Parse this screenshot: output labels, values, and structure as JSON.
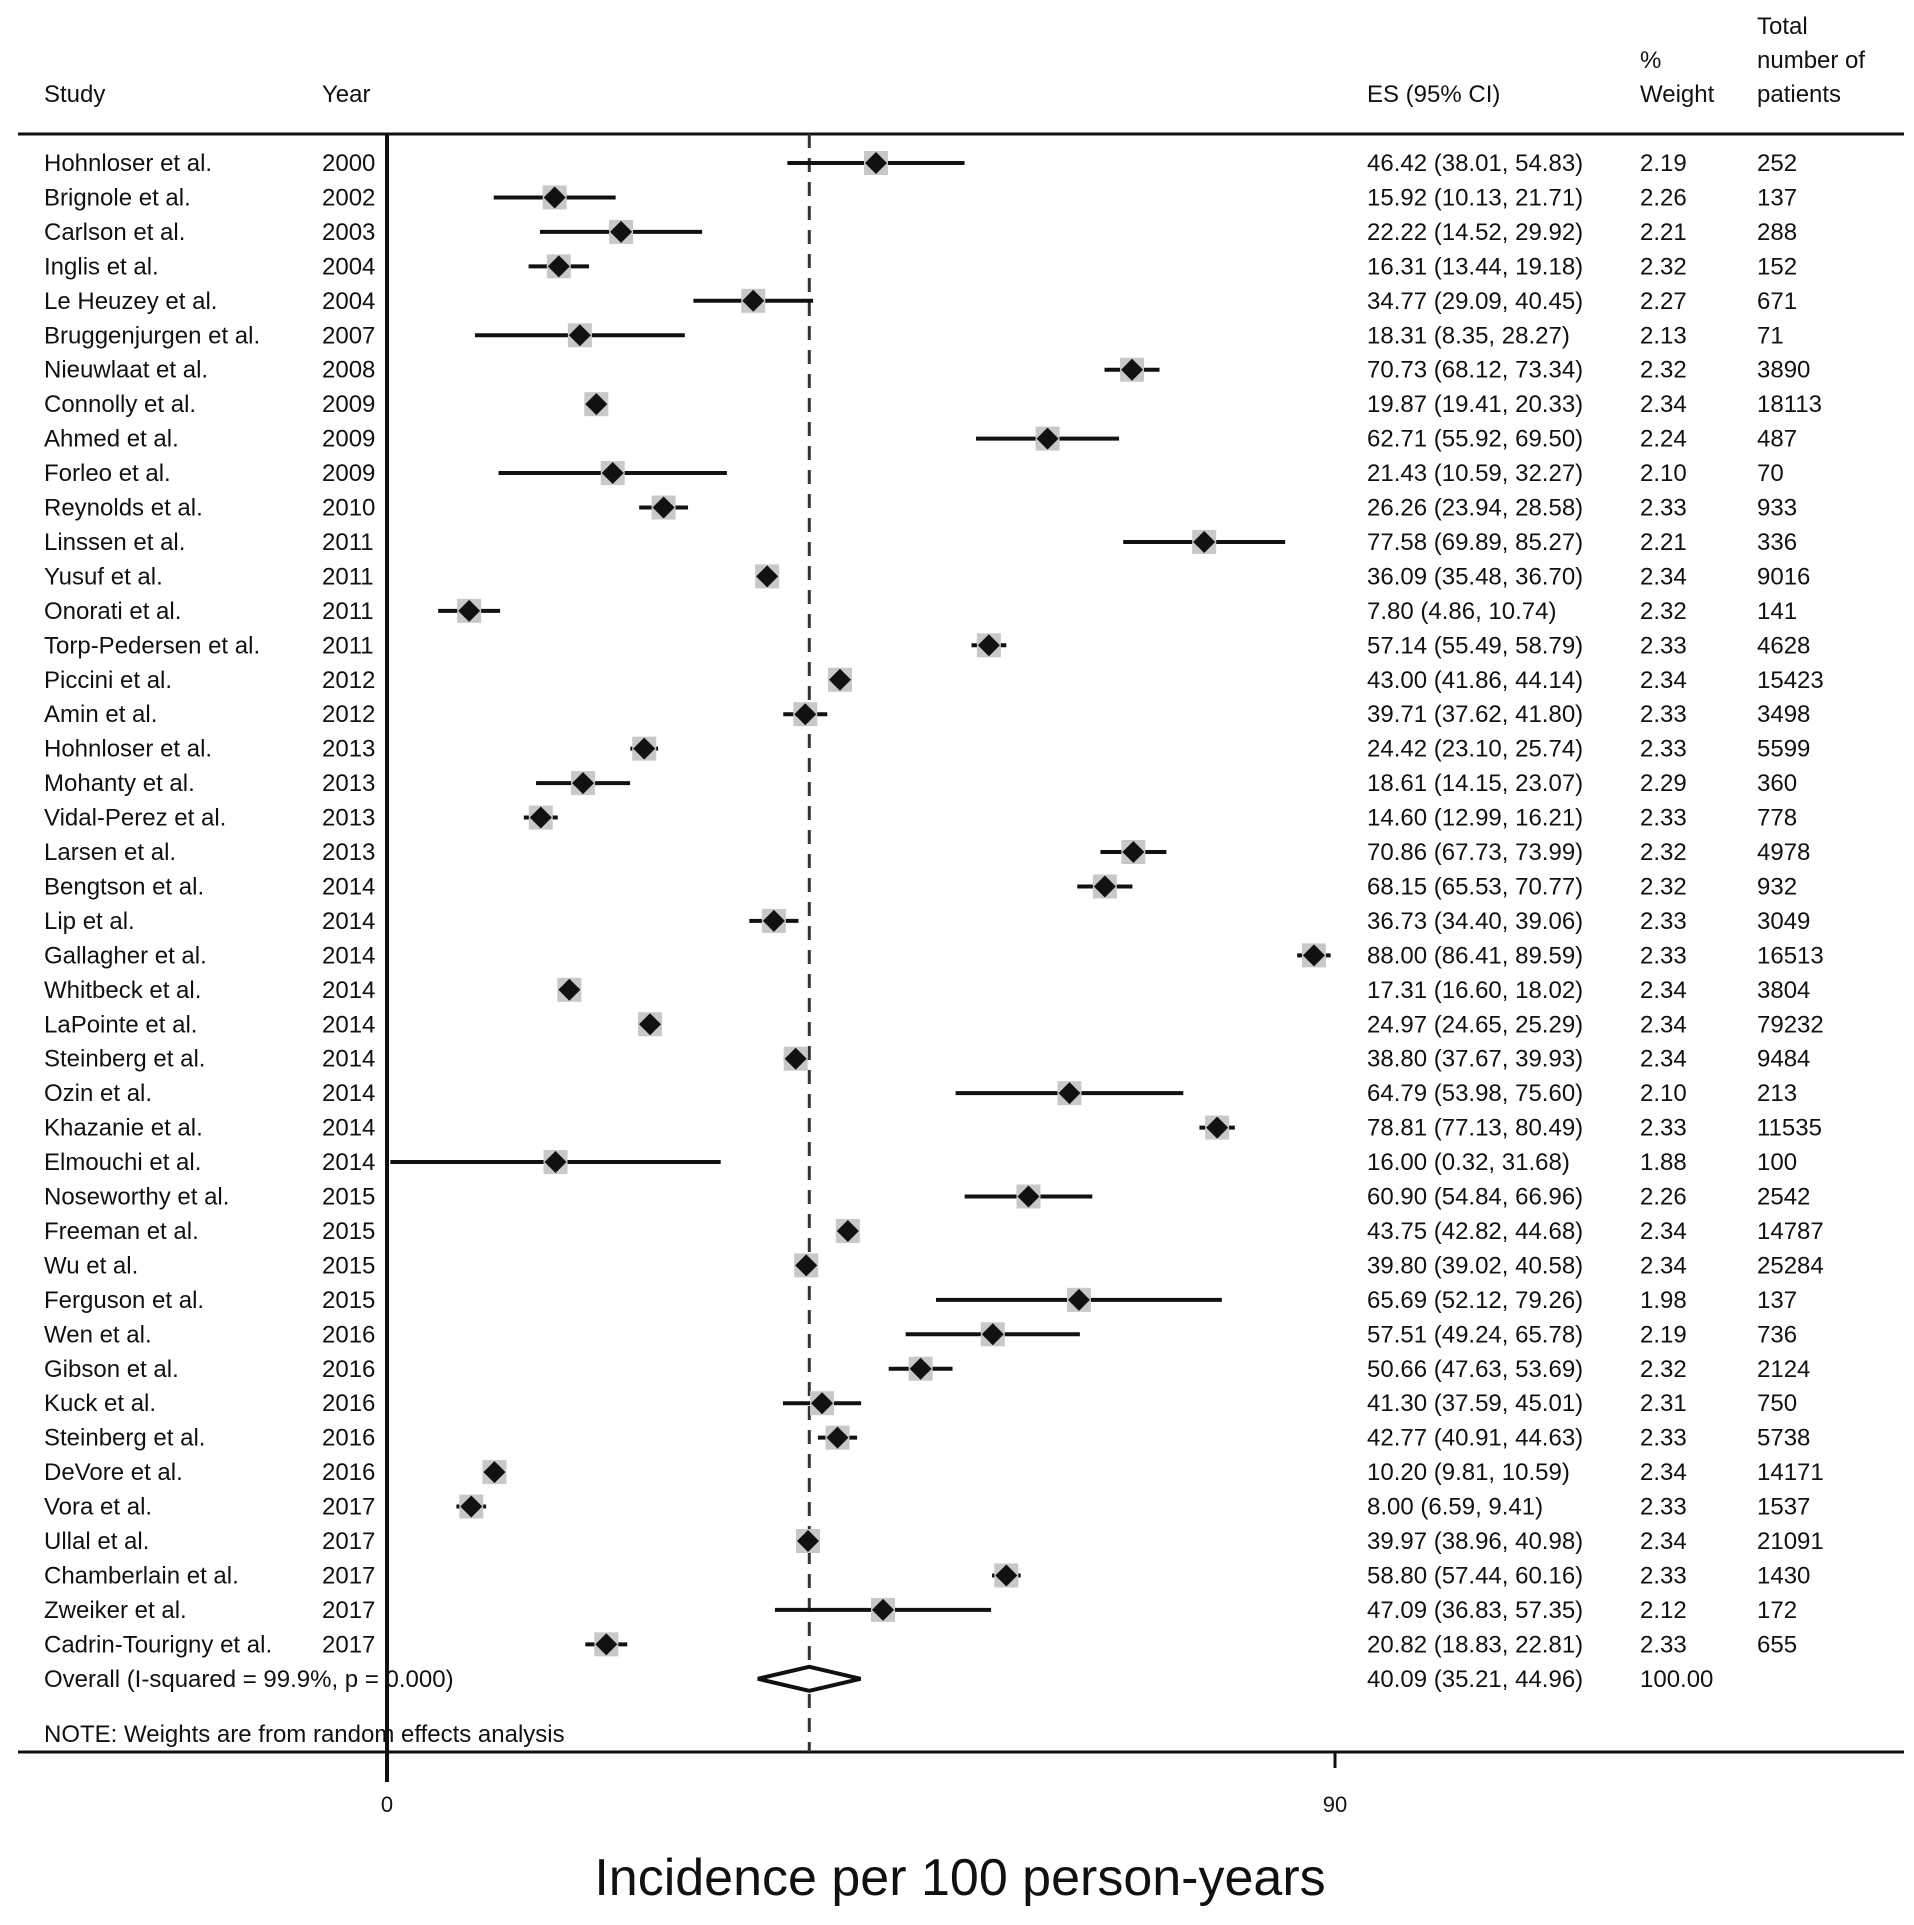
{
  "chart_data": {
    "type": "forest",
    "xlabel": "Incidence per 100 person-years",
    "xlim": [
      0,
      90
    ],
    "xticks": [
      "0",
      "90"
    ],
    "reference_line": 40.09,
    "headers": {
      "study": "Study",
      "year": "Year",
      "es": "ES (95% CI)",
      "weight_line1": "%",
      "weight_line2": "Weight",
      "total_line1": "Total",
      "total_line2": "number of",
      "total_line3": "patients"
    },
    "studies": [
      {
        "study": "Hohnloser et al.",
        "year": "2000",
        "es": 46.42,
        "lo": 38.01,
        "hi": 54.83,
        "ci_text": "46.42 (38.01, 54.83)",
        "weight": "2.19",
        "n": "252"
      },
      {
        "study": "Brignole et al.",
        "year": "2002",
        "es": 15.92,
        "lo": 10.13,
        "hi": 21.71,
        "ci_text": "15.92 (10.13, 21.71)",
        "weight": "2.26",
        "n": "137"
      },
      {
        "study": "Carlson et al.",
        "year": "2003",
        "es": 22.22,
        "lo": 14.52,
        "hi": 29.92,
        "ci_text": "22.22 (14.52, 29.92)",
        "weight": "2.21",
        "n": "288"
      },
      {
        "study": "Inglis et al.",
        "year": "2004",
        "es": 16.31,
        "lo": 13.44,
        "hi": 19.18,
        "ci_text": "16.31 (13.44, 19.18)",
        "weight": "2.32",
        "n": "152"
      },
      {
        "study": "Le Heuzey et al.",
        "year": "2004",
        "es": 34.77,
        "lo": 29.09,
        "hi": 40.45,
        "ci_text": "34.77 (29.09, 40.45)",
        "weight": "2.27",
        "n": "671"
      },
      {
        "study": "Bruggenjurgen et al.",
        "year": "2007",
        "es": 18.31,
        "lo": 8.35,
        "hi": 28.27,
        "ci_text": "18.31 (8.35, 28.27)",
        "weight": "2.13",
        "n": "71"
      },
      {
        "study": "Nieuwlaat et al.",
        "year": "2008",
        "es": 70.73,
        "lo": 68.12,
        "hi": 73.34,
        "ci_text": "70.73 (68.12, 73.34)",
        "weight": "2.32",
        "n": "3890"
      },
      {
        "study": "Connolly et al.",
        "year": "2009",
        "es": 19.87,
        "lo": 19.41,
        "hi": 20.33,
        "ci_text": "19.87 (19.41, 20.33)",
        "weight": "2.34",
        "n": "18113"
      },
      {
        "study": "Ahmed et al.",
        "year": "2009",
        "es": 62.71,
        "lo": 55.92,
        "hi": 69.5,
        "ci_text": "62.71 (55.92, 69.50)",
        "weight": "2.24",
        "n": "487"
      },
      {
        "study": "Forleo et al.",
        "year": "2009",
        "es": 21.43,
        "lo": 10.59,
        "hi": 32.27,
        "ci_text": "21.43 (10.59, 32.27)",
        "weight": "2.10",
        "n": "70"
      },
      {
        "study": "Reynolds et al.",
        "year": "2010",
        "es": 26.26,
        "lo": 23.94,
        "hi": 28.58,
        "ci_text": "26.26 (23.94, 28.58)",
        "weight": "2.33",
        "n": "933"
      },
      {
        "study": "Linssen et al.",
        "year": "2011",
        "es": 77.58,
        "lo": 69.89,
        "hi": 85.27,
        "ci_text": "77.58 (69.89, 85.27)",
        "weight": "2.21",
        "n": "336"
      },
      {
        "study": "Yusuf et al.",
        "year": "2011",
        "es": 36.09,
        "lo": 35.48,
        "hi": 36.7,
        "ci_text": "36.09 (35.48, 36.70)",
        "weight": "2.34",
        "n": "9016"
      },
      {
        "study": "Onorati et al.",
        "year": "2011",
        "es": 7.8,
        "lo": 4.86,
        "hi": 10.74,
        "ci_text": "7.80 (4.86, 10.74)",
        "weight": "2.32",
        "n": "141"
      },
      {
        "study": "Torp-Pedersen et al.",
        "year": "2011",
        "es": 57.14,
        "lo": 55.49,
        "hi": 58.79,
        "ci_text": "57.14 (55.49, 58.79)",
        "weight": "2.33",
        "n": "4628"
      },
      {
        "study": "Piccini et al.",
        "year": "2012",
        "es": 43.0,
        "lo": 41.86,
        "hi": 44.14,
        "ci_text": "43.00 (41.86, 44.14)",
        "weight": "2.34",
        "n": "15423"
      },
      {
        "study": "Amin et al.",
        "year": "2012",
        "es": 39.71,
        "lo": 37.62,
        "hi": 41.8,
        "ci_text": "39.71 (37.62, 41.80)",
        "weight": "2.33",
        "n": "3498"
      },
      {
        "study": "Hohnloser et al.",
        "year": "2013",
        "es": 24.42,
        "lo": 23.1,
        "hi": 25.74,
        "ci_text": "24.42 (23.10, 25.74)",
        "weight": "2.33",
        "n": "5599"
      },
      {
        "study": "Mohanty et al.",
        "year": "2013",
        "es": 18.61,
        "lo": 14.15,
        "hi": 23.07,
        "ci_text": "18.61 (14.15, 23.07)",
        "weight": "2.29",
        "n": "360"
      },
      {
        "study": "Vidal-Perez et al.",
        "year": "2013",
        "es": 14.6,
        "lo": 12.99,
        "hi": 16.21,
        "ci_text": "14.60 (12.99, 16.21)",
        "weight": "2.33",
        "n": "778"
      },
      {
        "study": "Larsen et al.",
        "year": "2013",
        "es": 70.86,
        "lo": 67.73,
        "hi": 73.99,
        "ci_text": "70.86 (67.73, 73.99)",
        "weight": "2.32",
        "n": "4978"
      },
      {
        "study": "Bengtson et al.",
        "year": "2014",
        "es": 68.15,
        "lo": 65.53,
        "hi": 70.77,
        "ci_text": "68.15 (65.53, 70.77)",
        "weight": "2.32",
        "n": "932"
      },
      {
        "study": "Lip et al.",
        "year": "2014",
        "es": 36.73,
        "lo": 34.4,
        "hi": 39.06,
        "ci_text": "36.73 (34.40, 39.06)",
        "weight": "2.33",
        "n": "3049"
      },
      {
        "study": "Gallagher et al.",
        "year": "2014",
        "es": 88.0,
        "lo": 86.41,
        "hi": 89.59,
        "ci_text": "88.00 (86.41, 89.59)",
        "weight": "2.33",
        "n": "16513"
      },
      {
        "study": "Whitbeck et al.",
        "year": "2014",
        "es": 17.31,
        "lo": 16.6,
        "hi": 18.02,
        "ci_text": "17.31 (16.60, 18.02)",
        "weight": "2.34",
        "n": "3804"
      },
      {
        "study": "LaPointe et al.",
        "year": "2014",
        "es": 24.97,
        "lo": 24.65,
        "hi": 25.29,
        "ci_text": "24.97 (24.65, 25.29)",
        "weight": "2.34",
        "n": "79232"
      },
      {
        "study": "Steinberg et al.",
        "year": "2014",
        "es": 38.8,
        "lo": 37.67,
        "hi": 39.93,
        "ci_text": "38.80 (37.67, 39.93)",
        "weight": "2.34",
        "n": "9484"
      },
      {
        "study": "Ozin et al.",
        "year": "2014",
        "es": 64.79,
        "lo": 53.98,
        "hi": 75.6,
        "ci_text": "64.79 (53.98, 75.60)",
        "weight": "2.10",
        "n": "213"
      },
      {
        "study": "Khazanie et al.",
        "year": "2014",
        "es": 78.81,
        "lo": 77.13,
        "hi": 80.49,
        "ci_text": "78.81 (77.13, 80.49)",
        "weight": "2.33",
        "n": "11535"
      },
      {
        "study": "Elmouchi et al.",
        "year": "2014",
        "es": 16.0,
        "lo": 0.32,
        "hi": 31.68,
        "ci_text": "16.00 (0.32, 31.68)",
        "weight": "1.88",
        "n": "100"
      },
      {
        "study": "Noseworthy et al.",
        "year": "2015",
        "es": 60.9,
        "lo": 54.84,
        "hi": 66.96,
        "ci_text": "60.90 (54.84, 66.96)",
        "weight": "2.26",
        "n": "2542"
      },
      {
        "study": "Freeman et al.",
        "year": "2015",
        "es": 43.75,
        "lo": 42.82,
        "hi": 44.68,
        "ci_text": "43.75 (42.82, 44.68)",
        "weight": "2.34",
        "n": "14787"
      },
      {
        "study": "Wu et al.",
        "year": "2015",
        "es": 39.8,
        "lo": 39.02,
        "hi": 40.58,
        "ci_text": "39.80 (39.02, 40.58)",
        "weight": "2.34",
        "n": "25284"
      },
      {
        "study": "Ferguson et al.",
        "year": "2015",
        "es": 65.69,
        "lo": 52.12,
        "hi": 79.26,
        "ci_text": "65.69 (52.12, 79.26)",
        "weight": "1.98",
        "n": "137"
      },
      {
        "study": "Wen et al.",
        "year": "2016",
        "es": 57.51,
        "lo": 49.24,
        "hi": 65.78,
        "ci_text": "57.51 (49.24, 65.78)",
        "weight": "2.19",
        "n": "736"
      },
      {
        "study": "Gibson et al.",
        "year": "2016",
        "es": 50.66,
        "lo": 47.63,
        "hi": 53.69,
        "ci_text": "50.66 (47.63, 53.69)",
        "weight": "2.32",
        "n": "2124"
      },
      {
        "study": "Kuck et al.",
        "year": "2016",
        "es": 41.3,
        "lo": 37.59,
        "hi": 45.01,
        "ci_text": "41.30 (37.59, 45.01)",
        "weight": "2.31",
        "n": "750"
      },
      {
        "study": "Steinberg et al.",
        "year": "2016",
        "es": 42.77,
        "lo": 40.91,
        "hi": 44.63,
        "ci_text": "42.77 (40.91, 44.63)",
        "weight": "2.33",
        "n": "5738"
      },
      {
        "study": "DeVore et al.",
        "year": "2016",
        "es": 10.2,
        "lo": 9.81,
        "hi": 10.59,
        "ci_text": "10.20 (9.81, 10.59)",
        "weight": "2.34",
        "n": "14171"
      },
      {
        "study": "Vora et al.",
        "year": "2017",
        "es": 8.0,
        "lo": 6.59,
        "hi": 9.41,
        "ci_text": "8.00 (6.59, 9.41)",
        "weight": "2.33",
        "n": "1537"
      },
      {
        "study": "Ullal et al.",
        "year": "2017",
        "es": 39.97,
        "lo": 38.96,
        "hi": 40.98,
        "ci_text": "39.97 (38.96, 40.98)",
        "weight": "2.34",
        "n": "21091"
      },
      {
        "study": "Chamberlain et al.",
        "year": "2017",
        "es": 58.8,
        "lo": 57.44,
        "hi": 60.16,
        "ci_text": "58.80 (57.44, 60.16)",
        "weight": "2.33",
        "n": "1430"
      },
      {
        "study": "Zweiker et al.",
        "year": "2017",
        "es": 47.09,
        "lo": 36.83,
        "hi": 57.35,
        "ci_text": "47.09 (36.83, 57.35)",
        "weight": "2.12",
        "n": "172"
      },
      {
        "study": "Cadrin-Tourigny et al.",
        "year": "2017",
        "es": 20.82,
        "lo": 18.83,
        "hi": 22.81,
        "ci_text": "20.82 (18.83, 22.81)",
        "weight": "2.33",
        "n": "655"
      }
    ],
    "overall": {
      "label": "Overall  (I-squared = 99.9%, p = 0.000)",
      "es": 40.09,
      "lo": 35.21,
      "hi": 44.96,
      "ci_text": "40.09 (35.21, 44.96)",
      "weight": "100.00"
    },
    "note": "NOTE: Weights are from random effects analysis"
  }
}
